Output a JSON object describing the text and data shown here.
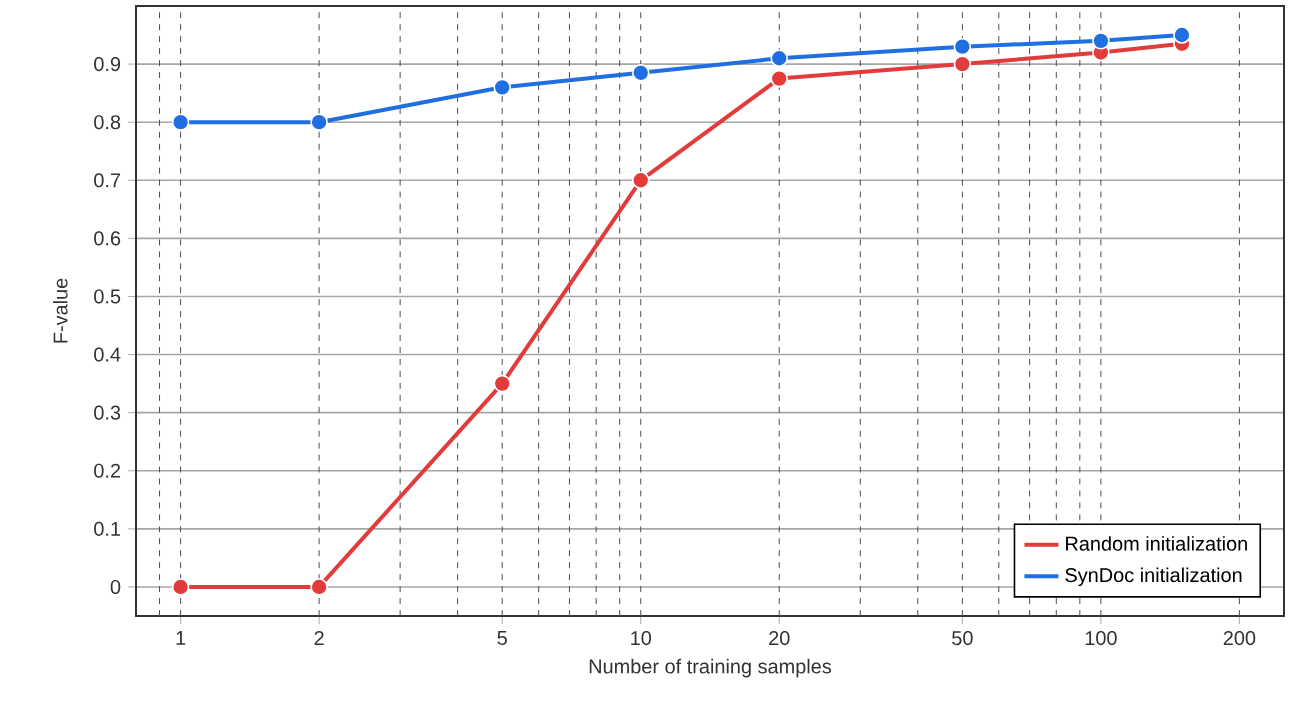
{
  "chart_data": {
    "type": "line",
    "xlabel": "Number of training samples",
    "ylabel": "F-value",
    "x": [
      1,
      2,
      5,
      10,
      20,
      50,
      100,
      150
    ],
    "series": [
      {
        "name": "Random initialization",
        "color": "#e23b3b",
        "values": [
          0,
          0,
          0.35,
          0.7,
          0.875,
          0.9,
          0.92,
          0.935
        ]
      },
      {
        "name": "SynDoc initialization",
        "color": "#1f6fe0",
        "values": [
          0.8,
          0.8,
          0.86,
          0.885,
          0.91,
          0.93,
          0.94,
          0.95
        ]
      }
    ],
    "log": "x",
    "xlim": [
      0.8,
      250
    ],
    "xticks": [
      1,
      2,
      5,
      10,
      20,
      50,
      100,
      200
    ],
    "ylim": [
      -0.05,
      1.0
    ],
    "yticks": [
      0,
      0.1,
      0.2,
      0.3,
      0.4,
      0.5,
      0.6,
      0.7,
      0.8,
      0.9
    ],
    "grid": true,
    "legend": "bottom right",
    "marker": "circle",
    "line_style": "solid"
  }
}
